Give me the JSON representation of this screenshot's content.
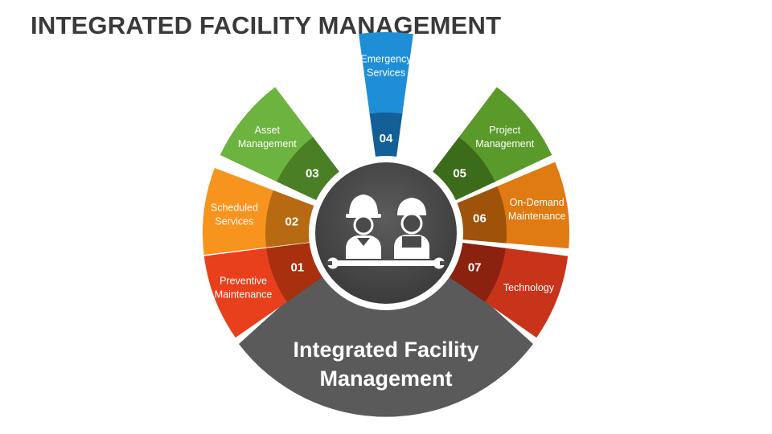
{
  "title": "INTEGRATED FACILITY MANAGEMENT",
  "segments": [
    {
      "number": "01",
      "label": [
        "Preventive",
        "Maintenance"
      ],
      "color": "#e8401c",
      "inner": "#a8300e"
    },
    {
      "number": "02",
      "label": [
        "Scheduled",
        "Services"
      ],
      "color": "#f7941d",
      "inner": "#b86a12"
    },
    {
      "number": "03",
      "label": [
        "Asset",
        "Management"
      ],
      "color": "#6db33f",
      "inner": "#4a7f26"
    },
    {
      "number": "04",
      "label": [
        "Emergency",
        "Services"
      ],
      "color": "#1e8fd6",
      "inner": "#135f98"
    },
    {
      "number": "05",
      "label": [
        "Project",
        "Management"
      ],
      "color": "#5a9a2a",
      "inner": "#3c6b1a"
    },
    {
      "number": "06",
      "label": [
        "On-Demand",
        "Maintenance"
      ],
      "color": "#e07a12",
      "inner": "#9e520a"
    },
    {
      "number": "07",
      "label": [
        "Technology"
      ],
      "color": "#c8341a",
      "inner": "#8a220f"
    }
  ],
  "center": {
    "title": [
      "Integrated Facility",
      "Management"
    ],
    "color": "#5a5a5a",
    "hub_color": "#4a4a4a",
    "icon": "workers-with-wrench-icon"
  }
}
